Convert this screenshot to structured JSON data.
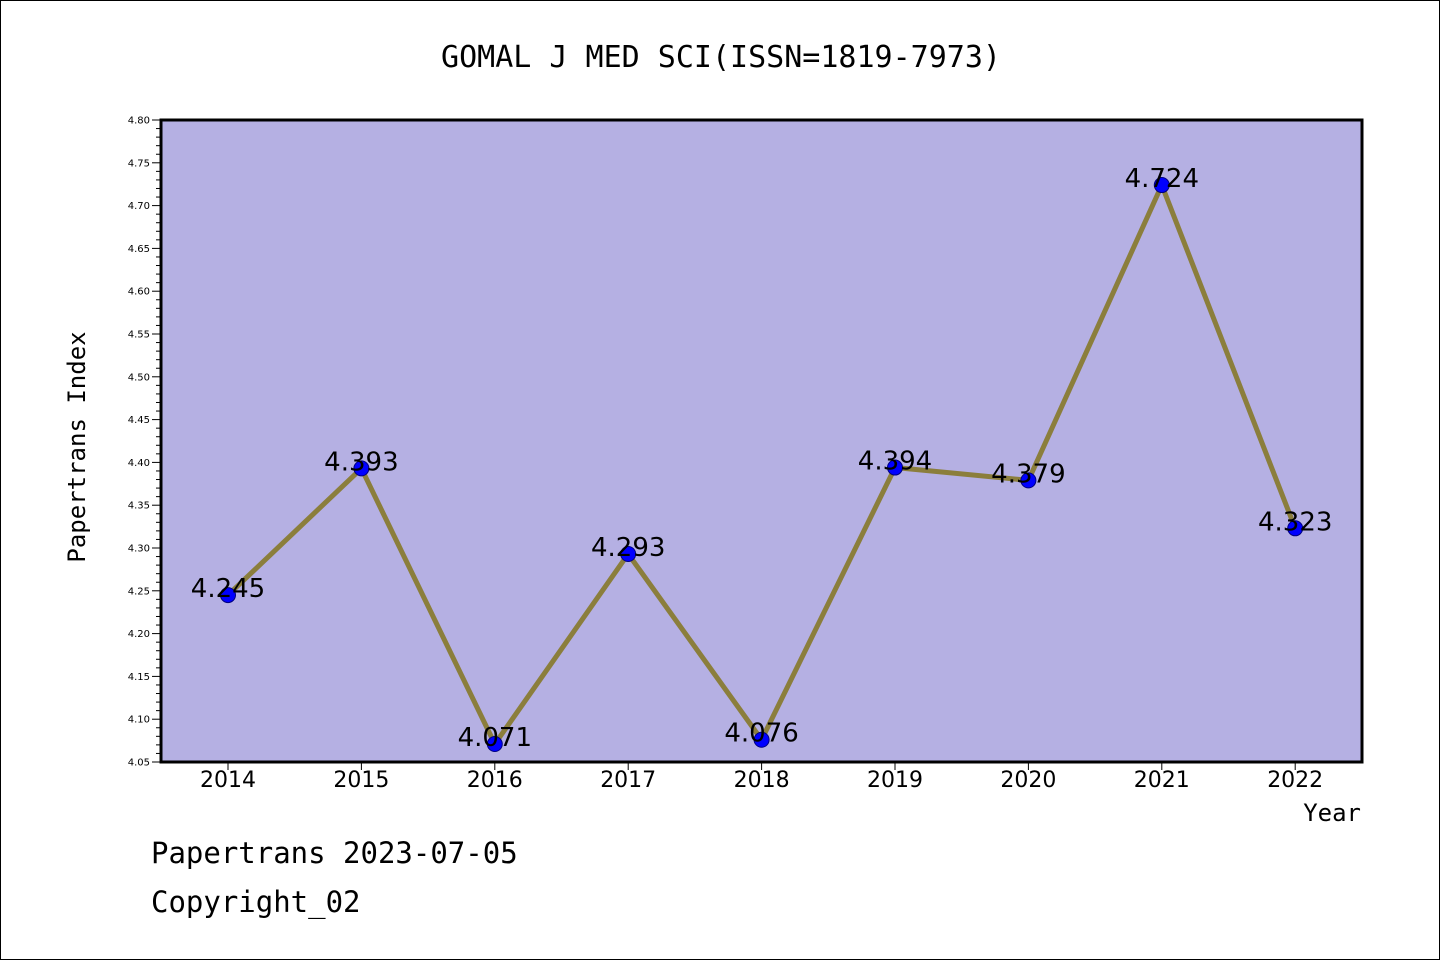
{
  "chart_data": {
    "type": "line",
    "title": "GOMAL J MED SCI(ISSN=1819-7973)",
    "xlabel": "Year",
    "ylabel": "Papertrans Index",
    "categories": [
      "2014",
      "2015",
      "2016",
      "2017",
      "2018",
      "2019",
      "2020",
      "2021",
      "2022"
    ],
    "series": [
      {
        "values": [
          4.245,
          4.393,
          4.071,
          4.293,
          4.076,
          4.394,
          4.379,
          4.724,
          4.323
        ],
        "labels": [
          "4.245",
          "4.393",
          "4.071",
          "4.293",
          "4.076",
          "4.394",
          "4.379",
          "4.724",
          "4.323"
        ]
      }
    ],
    "ylim": [
      4.05,
      4.8
    ],
    "yticks": [
      "4.05",
      "4.10",
      "4.15",
      "4.20",
      "4.25",
      "4.30",
      "4.35",
      "4.40",
      "4.45",
      "4.50",
      "4.55",
      "4.60",
      "4.65",
      "4.70",
      "4.75",
      "4.80"
    ],
    "grid": false,
    "colors": {
      "plot_background": "#b5b0e3",
      "line": "#8b7e3c",
      "marker": "#0000ff",
      "marker_edge": "#000080"
    }
  },
  "footer": {
    "line1": "Papertrans 2023-07-05",
    "line2": "Copyright_02"
  }
}
